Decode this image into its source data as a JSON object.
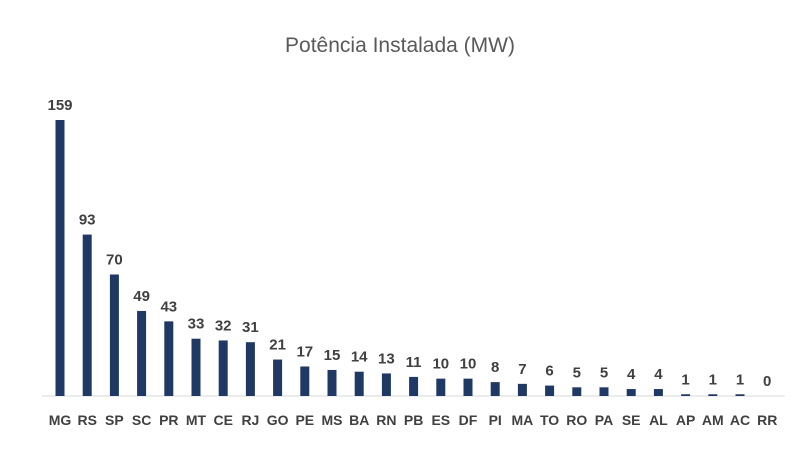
{
  "chart_data": {
    "type": "bar",
    "title": "Potência Instalada (MW)",
    "xlabel": "",
    "ylabel": "",
    "categories": [
      "MG",
      "RS",
      "SP",
      "SC",
      "PR",
      "MT",
      "CE",
      "RJ",
      "GO",
      "PE",
      "MS",
      "BA",
      "RN",
      "PB",
      "ES",
      "DF",
      "PI",
      "MA",
      "TO",
      "RO",
      "PA",
      "SE",
      "AL",
      "AP",
      "AM",
      "AC",
      "RR"
    ],
    "values": [
      159,
      93,
      70,
      49,
      43,
      33,
      32,
      31,
      21,
      17,
      15,
      14,
      13,
      11,
      10,
      10,
      8,
      7,
      6,
      5,
      5,
      4,
      4,
      1,
      1,
      1,
      0
    ],
    "ylim": [
      0,
      159
    ],
    "grid": false,
    "legend": "none",
    "bar_color": "#1f3864",
    "data_labels": true
  }
}
